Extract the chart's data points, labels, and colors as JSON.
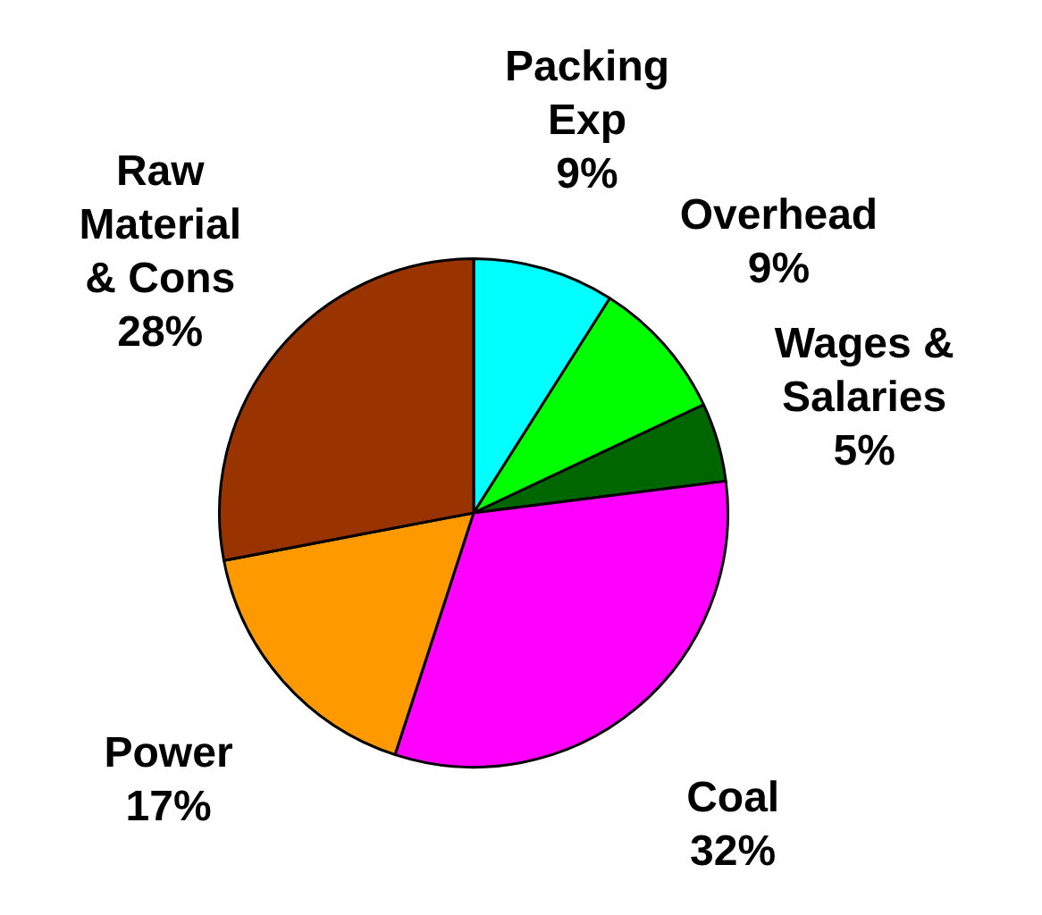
{
  "chart_data": {
    "type": "pie",
    "categories": [
      "Packing Exp",
      "Overhead",
      "Wages & Salaries",
      "Coal",
      "Power",
      "Raw Material & Cons"
    ],
    "values": [
      9,
      9,
      5,
      32,
      17,
      28
    ],
    "colors": [
      "#00ffff",
      "#00ff00",
      "#006600",
      "#ff00ff",
      "#ff9900",
      "#993300"
    ],
    "value_labels": [
      "9%",
      "9%",
      "5%",
      "32%",
      "17%",
      "28%"
    ],
    "legend": false
  }
}
